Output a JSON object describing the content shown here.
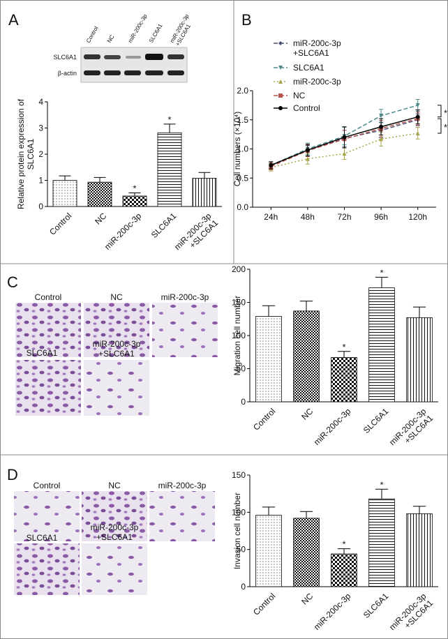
{
  "figure": {
    "panels": [
      "A",
      "B",
      "C",
      "D"
    ],
    "blot": {
      "lanes": [
        "Control",
        "NC",
        "miR-200c-3p",
        "SLC6A1",
        "miR-200c-3p\n+SLC6A1"
      ],
      "rows": [
        "SLC6A1",
        "β-actin"
      ]
    },
    "images_c": [
      "Control",
      "NC",
      "miR-200c-3p",
      "SLC6A1",
      "miR-200c-3p\n+SLC6A1"
    ],
    "images_d": [
      "Control",
      "NC",
      "miR-200c-3p",
      "SLC6A1",
      "miR-200c-3p\n+SLC6A1"
    ]
  },
  "chart_data": [
    {
      "type": "bar",
      "y_label": "Relative protein  expression of\nSLC6A1",
      "categories": [
        "Control",
        "NC",
        "miR-200c-3p",
        "SLC6A1",
        "miR-200c-3p\n+SLC6A1"
      ],
      "values": [
        1.0,
        0.93,
        0.4,
        2.82,
        1.08
      ],
      "errors": [
        0.17,
        0.18,
        0.12,
        0.33,
        0.22
      ],
      "significance": [
        null,
        null,
        "*",
        "*",
        null
      ],
      "ylim": [
        0,
        4
      ],
      "yticks": [
        0,
        1,
        2,
        3,
        4
      ]
    },
    {
      "type": "line",
      "y_label": "Cell numbers (×10⁴)",
      "categories": [
        "24h",
        "48h",
        "72h",
        "96h",
        "120h"
      ],
      "series": [
        {
          "name": "miR-200c-3p\n+SLC6A1",
          "color": "#4a4f7a",
          "style": "dashed",
          "marker": "diamond",
          "values": [
            0.72,
            0.97,
            1.18,
            1.32,
            1.5
          ],
          "errors": [
            0.06,
            0.09,
            0.14,
            0.13,
            0.1
          ]
        },
        {
          "name": "SLC6A1",
          "color": "#4f8a8b",
          "style": "dashed",
          "marker": "triangle-down",
          "values": [
            0.72,
            1.0,
            1.22,
            1.57,
            1.75
          ],
          "errors": [
            0.06,
            0.1,
            0.15,
            0.11,
            0.1
          ]
        },
        {
          "name": "miR-200c-3p",
          "color": "#a8a44a",
          "style": "dotted",
          "marker": "triangle-up",
          "values": [
            0.68,
            0.83,
            0.92,
            1.17,
            1.27
          ],
          "errors": [
            0.06,
            0.09,
            0.1,
            0.12,
            0.1
          ]
        },
        {
          "name": "NC",
          "color": "#b5534a",
          "style": "dashed",
          "marker": "square",
          "values": [
            0.7,
            0.97,
            1.17,
            1.35,
            1.52
          ],
          "errors": [
            0.06,
            0.1,
            0.15,
            0.14,
            0.11
          ]
        },
        {
          "name": "Control",
          "color": "#000000",
          "style": "solid",
          "marker": "circle",
          "values": [
            0.72,
            0.98,
            1.2,
            1.38,
            1.55
          ],
          "errors": [
            0.06,
            0.1,
            0.18,
            0.14,
            0.12
          ]
        }
      ],
      "annotations": [
        "*",
        "*"
      ],
      "ylim": [
        0,
        2
      ],
      "yticks": [
        {
          "value": 0,
          "label": "0.0"
        },
        0.5,
        {
          "value": 1,
          "label": "1.0"
        },
        1.5,
        {
          "value": 2,
          "label": "2.0"
        }
      ]
    },
    {
      "type": "bar",
      "y_label": "Migration cell number",
      "categories": [
        "Control",
        "NC",
        "miR-200c-3p",
        "SLC6A1",
        "miR-200c-3p\n+SLC6A1"
      ],
      "values": [
        129,
        137,
        67,
        172,
        127
      ],
      "errors": [
        16,
        15,
        9,
        16,
        16
      ],
      "significance": [
        null,
        null,
        "*",
        "*",
        null
      ],
      "ylim": [
        0,
        200
      ],
      "yticks": [
        0,
        50,
        100,
        150,
        200
      ]
    },
    {
      "type": "bar",
      "y_label": "Invasion cell number",
      "categories": [
        "Control",
        "NC",
        "miR-200c-3p",
        "SLC6A1",
        "miR-200c-3p\n+SLC6A1"
      ],
      "values": [
        96,
        92,
        44,
        118,
        98
      ],
      "errors": [
        11,
        9,
        7,
        13,
        10
      ],
      "significance": [
        null,
        null,
        "*",
        "*",
        null
      ],
      "ylim": [
        0,
        150
      ],
      "yticks": [
        0,
        50,
        100,
        150
      ]
    }
  ]
}
